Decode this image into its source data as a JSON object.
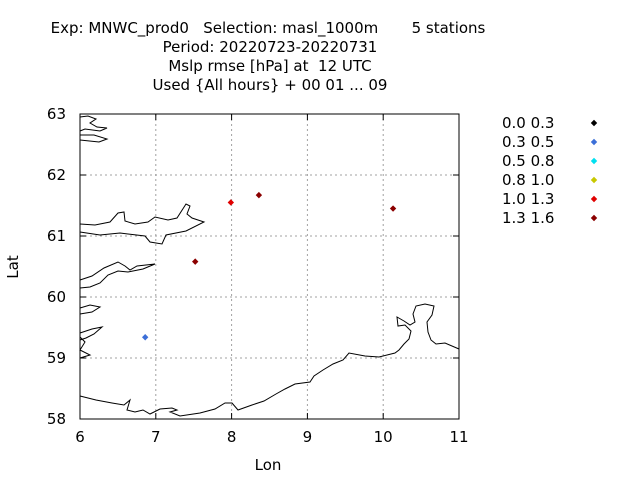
{
  "chart_data": {
    "type": "scatter",
    "title_lines": [
      "Exp: MNWC_prod0   Selection: masl_1000m       5 stations",
      "Period: 20220723-20220731",
      "Mslp rmse [hPa] at  12 UTC",
      "Used {All hours} + 00 01 ... 09"
    ],
    "xlabel": "Lon",
    "ylabel": "Lat",
    "xlim": [
      6,
      11
    ],
    "ylim": [
      58,
      63
    ],
    "x_ticks": [
      "6",
      "7",
      "8",
      "9",
      "10",
      "11"
    ],
    "y_ticks": [
      "58",
      "59",
      "60",
      "61",
      "62",
      "63"
    ],
    "grid": true,
    "legend_position": "right",
    "legend": [
      {
        "label": "0.0 0.3",
        "color": "#000000"
      },
      {
        "label": "0.3 0.5",
        "color": "#3c6fd8"
      },
      {
        "label": "0.5 0.8",
        "color": "#00e0f0"
      },
      {
        "label": "0.8 1.0",
        "color": "#c8c800"
      },
      {
        "label": "1.0 1.3",
        "color": "#e00000"
      },
      {
        "label": "1.3 1.6",
        "color": "#8b0000"
      }
    ],
    "points": [
      {
        "lon": 6.86,
        "lat": 59.34,
        "class": 1
      },
      {
        "lon": 7.52,
        "lat": 60.58,
        "class": 5
      },
      {
        "lon": 7.99,
        "lat": 61.55,
        "class": 4
      },
      {
        "lon": 8.36,
        "lat": 61.67,
        "class": 5
      },
      {
        "lon": 10.13,
        "lat": 61.45,
        "class": 5
      }
    ]
  }
}
